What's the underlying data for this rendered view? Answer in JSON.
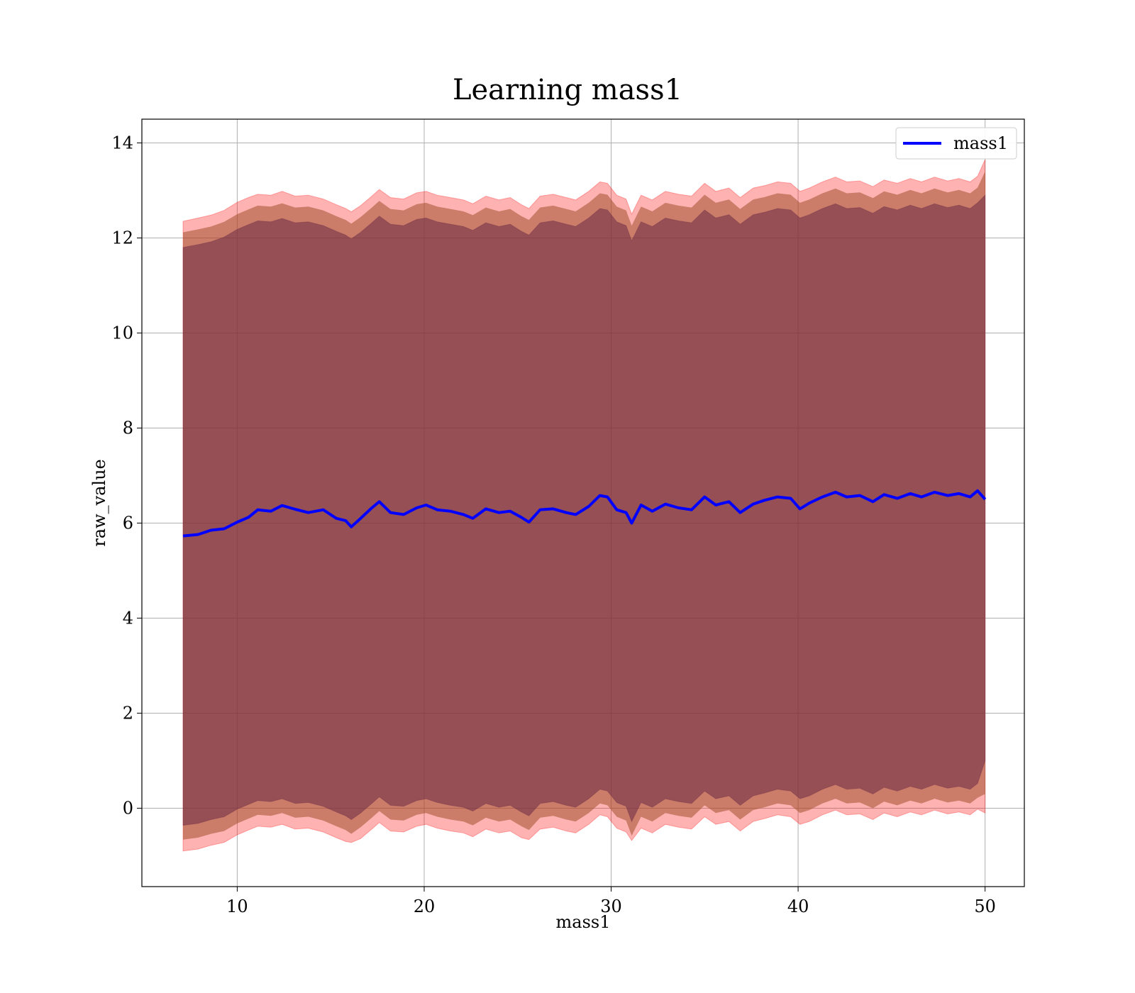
{
  "chart_data": {
    "type": "line",
    "title": "Learning mass1",
    "xlabel": "mass1",
    "ylabel": "raw_value",
    "xlim": [
      4.9,
      52.1
    ],
    "ylim": [
      -1.65,
      14.5
    ],
    "xticks": [
      10,
      20,
      30,
      40,
      50
    ],
    "yticks": [
      0,
      2,
      4,
      6,
      8,
      10,
      12,
      14
    ],
    "grid": true,
    "legend": "top-right",
    "colors": {
      "line": "#0000ff",
      "outer_band": "#ff0000",
      "middle_band": "#a0522d",
      "inner_band": "#6b2a45"
    },
    "series": [
      {
        "name": "mass1",
        "x": [
          7.1,
          7.9,
          8.6,
          9.3,
          10.0,
          10.6,
          11.1,
          11.8,
          12.4,
          13.1,
          13.8,
          14.6,
          15.3,
          15.8,
          16.1,
          16.6,
          17.2,
          17.6,
          18.2,
          18.9,
          19.6,
          20.1,
          20.7,
          21.4,
          22.1,
          22.6,
          23.3,
          24.0,
          24.6,
          25.2,
          25.6,
          26.2,
          26.9,
          27.6,
          28.1,
          28.8,
          29.4,
          29.8,
          30.3,
          30.8,
          31.1,
          31.6,
          32.2,
          32.9,
          33.6,
          34.3,
          35.0,
          35.6,
          36.3,
          36.9,
          37.6,
          38.2,
          38.9,
          39.6,
          40.1,
          40.6,
          41.3,
          42.0,
          42.6,
          43.3,
          44.0,
          44.6,
          45.3,
          46.0,
          46.6,
          47.3,
          48.0,
          48.6,
          49.2,
          49.6,
          50.0
        ],
        "y": [
          5.73,
          5.76,
          5.85,
          5.88,
          6.02,
          6.12,
          6.28,
          6.25,
          6.37,
          6.29,
          6.22,
          6.28,
          6.1,
          6.05,
          5.92,
          6.1,
          6.32,
          6.45,
          6.22,
          6.18,
          6.32,
          6.38,
          6.28,
          6.25,
          6.18,
          6.1,
          6.3,
          6.22,
          6.25,
          6.12,
          6.02,
          6.28,
          6.3,
          6.22,
          6.18,
          6.35,
          6.58,
          6.55,
          6.28,
          6.22,
          6.0,
          6.38,
          6.25,
          6.4,
          6.32,
          6.28,
          6.55,
          6.38,
          6.45,
          6.22,
          6.4,
          6.48,
          6.55,
          6.52,
          6.3,
          6.42,
          6.55,
          6.65,
          6.55,
          6.58,
          6.45,
          6.6,
          6.52,
          6.62,
          6.55,
          6.65,
          6.58,
          6.62,
          6.55,
          6.68,
          6.5
        ],
        "outer_upper": [
          12.35,
          12.42,
          12.48,
          12.58,
          12.75,
          12.85,
          12.92,
          12.9,
          12.98,
          12.88,
          12.9,
          12.82,
          12.7,
          12.62,
          12.55,
          12.68,
          12.88,
          13.02,
          12.85,
          12.82,
          12.95,
          12.98,
          12.9,
          12.85,
          12.8,
          12.72,
          12.88,
          12.8,
          12.85,
          12.7,
          12.62,
          12.88,
          12.92,
          12.85,
          12.8,
          12.98,
          13.18,
          13.15,
          12.9,
          12.82,
          12.5,
          12.9,
          12.8,
          12.98,
          12.92,
          12.88,
          13.15,
          12.98,
          13.05,
          12.85,
          13.05,
          13.1,
          13.18,
          13.15,
          12.98,
          13.05,
          13.18,
          13.28,
          13.18,
          13.2,
          13.08,
          13.22,
          13.15,
          13.25,
          13.18,
          13.28,
          13.2,
          13.25,
          13.18,
          13.3,
          13.65
        ],
        "middle_upper": [
          12.12,
          12.18,
          12.24,
          12.34,
          12.5,
          12.6,
          12.68,
          12.66,
          12.73,
          12.64,
          12.66,
          12.58,
          12.46,
          12.38,
          12.3,
          12.44,
          12.64,
          12.78,
          12.61,
          12.58,
          12.71,
          12.74,
          12.66,
          12.61,
          12.56,
          12.48,
          12.64,
          12.56,
          12.61,
          12.46,
          12.38,
          12.64,
          12.68,
          12.61,
          12.56,
          12.74,
          12.94,
          12.91,
          12.66,
          12.58,
          12.26,
          12.66,
          12.56,
          12.74,
          12.68,
          12.64,
          12.91,
          12.74,
          12.81,
          12.61,
          12.81,
          12.86,
          12.94,
          12.91,
          12.74,
          12.81,
          12.94,
          13.04,
          12.94,
          12.96,
          12.84,
          12.98,
          12.91,
          13.01,
          12.94,
          13.04,
          12.96,
          13.01,
          12.94,
          13.06,
          13.4
        ],
        "inner_upper": [
          11.8,
          11.86,
          11.92,
          12.02,
          12.18,
          12.28,
          12.36,
          12.34,
          12.41,
          12.32,
          12.34,
          12.26,
          12.14,
          12.06,
          11.98,
          12.12,
          12.32,
          12.46,
          12.29,
          12.26,
          12.39,
          12.42,
          12.34,
          12.29,
          12.24,
          12.16,
          12.32,
          12.24,
          12.29,
          12.14,
          12.06,
          12.32,
          12.36,
          12.29,
          12.24,
          12.42,
          12.62,
          12.59,
          12.34,
          12.26,
          11.94,
          12.34,
          12.24,
          12.42,
          12.36,
          12.32,
          12.59,
          12.42,
          12.49,
          12.29,
          12.49,
          12.54,
          12.62,
          12.59,
          12.42,
          12.49,
          12.62,
          12.72,
          12.62,
          12.64,
          12.52,
          12.66,
          12.59,
          12.69,
          12.62,
          12.72,
          12.64,
          12.69,
          12.62,
          12.74,
          12.9
        ],
        "inner_lower": [
          -0.36,
          -0.32,
          -0.24,
          -0.18,
          -0.02,
          0.08,
          0.16,
          0.14,
          0.2,
          0.1,
          0.12,
          0.04,
          -0.08,
          -0.16,
          -0.24,
          -0.1,
          0.1,
          0.24,
          0.06,
          0.04,
          0.16,
          0.2,
          0.12,
          0.06,
          0.02,
          -0.06,
          0.1,
          0.02,
          0.06,
          -0.08,
          -0.16,
          0.1,
          0.14,
          0.06,
          0.02,
          0.2,
          0.4,
          0.36,
          0.12,
          0.04,
          -0.28,
          0.12,
          0.02,
          0.2,
          0.14,
          0.1,
          0.36,
          0.2,
          0.26,
          0.06,
          0.26,
          0.32,
          0.4,
          0.36,
          0.2,
          0.26,
          0.4,
          0.5,
          0.4,
          0.42,
          0.3,
          0.44,
          0.36,
          0.46,
          0.4,
          0.5,
          0.42,
          0.46,
          0.4,
          0.52,
          1.0
        ],
        "middle_lower": [
          -0.66,
          -0.62,
          -0.54,
          -0.48,
          -0.32,
          -0.22,
          -0.14,
          -0.16,
          -0.1,
          -0.2,
          -0.18,
          -0.26,
          -0.38,
          -0.46,
          -0.54,
          -0.4,
          -0.2,
          -0.06,
          -0.24,
          -0.26,
          -0.14,
          -0.1,
          -0.18,
          -0.24,
          -0.28,
          -0.36,
          -0.2,
          -0.28,
          -0.24,
          -0.38,
          -0.46,
          -0.2,
          -0.16,
          -0.24,
          -0.28,
          -0.1,
          0.1,
          0.06,
          -0.18,
          -0.26,
          -0.58,
          -0.18,
          -0.28,
          -0.1,
          -0.16,
          -0.2,
          0.06,
          -0.1,
          -0.04,
          -0.24,
          -0.04,
          0.02,
          0.1,
          0.06,
          -0.1,
          -0.04,
          0.1,
          0.2,
          0.1,
          0.12,
          0.0,
          0.14,
          0.06,
          0.16,
          0.1,
          0.2,
          0.12,
          0.16,
          0.1,
          0.22,
          0.3
        ],
        "outer_lower": [
          -0.9,
          -0.86,
          -0.78,
          -0.72,
          -0.56,
          -0.46,
          -0.38,
          -0.4,
          -0.34,
          -0.44,
          -0.42,
          -0.5,
          -0.62,
          -0.7,
          -0.72,
          -0.64,
          -0.44,
          -0.3,
          -0.48,
          -0.5,
          -0.38,
          -0.34,
          -0.42,
          -0.48,
          -0.52,
          -0.6,
          -0.44,
          -0.52,
          -0.48,
          -0.62,
          -0.66,
          -0.44,
          -0.4,
          -0.48,
          -0.52,
          -0.34,
          -0.14,
          -0.18,
          -0.42,
          -0.5,
          -0.68,
          -0.42,
          -0.52,
          -0.34,
          -0.4,
          -0.44,
          -0.18,
          -0.34,
          -0.28,
          -0.48,
          -0.28,
          -0.22,
          -0.14,
          -0.18,
          -0.34,
          -0.28,
          -0.14,
          -0.04,
          -0.14,
          -0.12,
          -0.24,
          -0.1,
          -0.18,
          -0.08,
          -0.14,
          -0.04,
          -0.12,
          -0.08,
          -0.14,
          -0.02,
          -0.1
        ]
      }
    ]
  }
}
